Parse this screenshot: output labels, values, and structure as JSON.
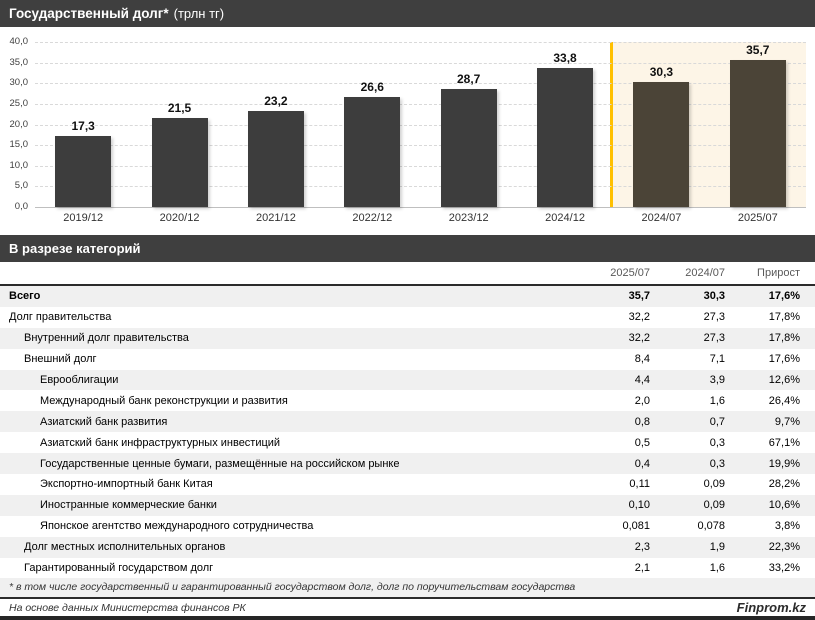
{
  "title_bar": {
    "title": "Государственный долг*",
    "subtitle": "(трлн тг)"
  },
  "chart_data": {
    "type": "bar",
    "title": "Государственный долг* (трлн тг)",
    "categories": [
      "2019/12",
      "2020/12",
      "2021/12",
      "2022/12",
      "2023/12",
      "2024/12",
      "2024/07",
      "2025/07"
    ],
    "values": [
      17.3,
      21.5,
      23.2,
      26.6,
      28.7,
      33.8,
      30.3,
      35.7
    ],
    "value_labels": [
      "17,3",
      "21,5",
      "23,2",
      "26,6",
      "28,7",
      "33,8",
      "30,3",
      "35,7"
    ],
    "ylim": [
      0,
      40
    ],
    "ytick_step": 5,
    "ytick_labels": [
      "40,0",
      "35,0",
      "30,0",
      "25,0",
      "20,0",
      "15,0",
      "10,0",
      "5,0",
      "0,0"
    ],
    "grid": "dashed-horizontal",
    "bar_color": "#3d3d3d",
    "highlight_bar_color": "#4b4437",
    "highlight_start_index": 6,
    "highlight_bg_color": "#fdf5e7",
    "divider_color": "#ffc000"
  },
  "section_bar": {
    "label": "В разрезе категорий"
  },
  "table": {
    "columns": [
      "2025/07",
      "2024/07",
      "Прирост"
    ],
    "rows": [
      {
        "label": "Всего",
        "v2025": "35,7",
        "v2024": "30,3",
        "growth": "17,6%",
        "indent": 0,
        "bold": true
      },
      {
        "label": "Долг правительства",
        "v2025": "32,2",
        "v2024": "27,3",
        "growth": "17,8%",
        "indent": 0,
        "bold": false
      },
      {
        "label": "Внутренний долг правительства",
        "v2025": "32,2",
        "v2024": "27,3",
        "growth": "17,8%",
        "indent": 1,
        "bold": false
      },
      {
        "label": "Внешний долг",
        "v2025": "8,4",
        "v2024": "7,1",
        "growth": "17,6%",
        "indent": 1,
        "bold": false
      },
      {
        "label": "Еврооблигации",
        "v2025": "4,4",
        "v2024": "3,9",
        "growth": "12,6%",
        "indent": 2,
        "bold": false
      },
      {
        "label": "Международный банк реконструкции и развития",
        "v2025": "2,0",
        "v2024": "1,6",
        "growth": "26,4%",
        "indent": 2,
        "bold": false
      },
      {
        "label": "Азиатский банк развития",
        "v2025": "0,8",
        "v2024": "0,7",
        "growth": "9,7%",
        "indent": 2,
        "bold": false
      },
      {
        "label": "Азиатский банк инфраструктурных инвестиций",
        "v2025": "0,5",
        "v2024": "0,3",
        "growth": "67,1%",
        "indent": 2,
        "bold": false
      },
      {
        "label": "Государственные ценные бумаги, размещённые на российском рынке",
        "v2025": "0,4",
        "v2024": "0,3",
        "growth": "19,9%",
        "indent": 2,
        "bold": false
      },
      {
        "label": "Экспортно-импортный банк Китая",
        "v2025": "0,11",
        "v2024": "0,09",
        "growth": "28,2%",
        "indent": 2,
        "bold": false
      },
      {
        "label": "Иностранные коммерческие банки",
        "v2025": "0,10",
        "v2024": "0,09",
        "growth": "10,6%",
        "indent": 2,
        "bold": false
      },
      {
        "label": "Японское агентство международного сотрудничества",
        "v2025": "0,081",
        "v2024": "0,078",
        "growth": "3,8%",
        "indent": 2,
        "bold": false
      },
      {
        "label": "Долг местных исполнительных органов",
        "v2025": "2,3",
        "v2024": "1,9",
        "growth": "22,3%",
        "indent": 1,
        "bold": false
      },
      {
        "label": "Гарантированный государством долг",
        "v2025": "2,1",
        "v2024": "1,6",
        "growth": "33,2%",
        "indent": 1,
        "bold": false
      }
    ]
  },
  "footnote": "* в том числе государственный и гарантированный государством долг, долг по поручительствам государства",
  "footer": {
    "source": "На основе данных Министерства финансов РК",
    "brand": "Finprom.kz"
  }
}
